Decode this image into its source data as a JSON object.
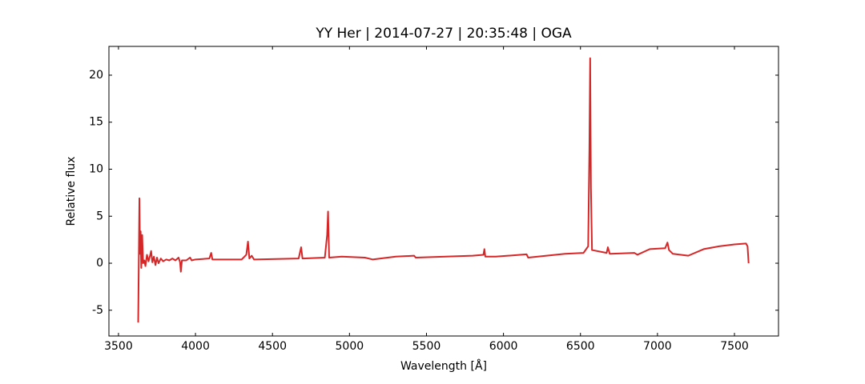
{
  "chart_data": {
    "type": "line",
    "title": "YY Her | 2014-07-27 | 20:35:48 | OGA",
    "xlabel": "Wavelength [Å]",
    "ylabel": "Relative flux",
    "color": "#d62728",
    "x": [
      3628,
      3636,
      3640,
      3644,
      3648,
      3654,
      3660,
      3668,
      3675,
      3685,
      3695,
      3705,
      3712,
      3720,
      3730,
      3740,
      3750,
      3760,
      3775,
      3790,
      3810,
      3830,
      3850,
      3870,
      3890,
      3900,
      3905,
      3912,
      3940,
      3965,
      3975,
      4000,
      4090,
      4102,
      4110,
      4300,
      4330,
      4341,
      4350,
      4365,
      4380,
      4670,
      4686,
      4695,
      4840,
      4855,
      4861,
      4868,
      4950,
      5100,
      5150,
      5300,
      5420,
      5430,
      5800,
      5870,
      5876,
      5882,
      5950,
      6150,
      6160,
      6400,
      6520,
      6550,
      6558,
      6563,
      6568,
      6575,
      6670,
      6678,
      6690,
      6850,
      6870,
      6950,
      7050,
      7065,
      7075,
      7100,
      7200,
      7300,
      7400,
      7500,
      7575,
      7585,
      7592
    ],
    "values": [
      -6.3,
      6.9,
      1.0,
      3.4,
      -0.5,
      3.0,
      0.0,
      0.3,
      -0.3,
      0.9,
      0.2,
      0.8,
      1.3,
      0.1,
      0.7,
      -0.2,
      0.6,
      0.0,
      0.5,
      0.2,
      0.4,
      0.3,
      0.5,
      0.3,
      0.6,
      0.1,
      -0.9,
      0.3,
      0.3,
      0.6,
      0.3,
      0.4,
      0.5,
      1.1,
      0.4,
      0.4,
      0.9,
      2.3,
      0.5,
      0.8,
      0.4,
      0.5,
      1.7,
      0.5,
      0.6,
      3.0,
      5.5,
      0.6,
      0.7,
      0.6,
      0.4,
      0.7,
      0.8,
      0.6,
      0.8,
      0.9,
      1.5,
      0.7,
      0.7,
      0.95,
      0.6,
      1.0,
      1.1,
      1.8,
      12,
      21.8,
      8,
      1.4,
      1.1,
      1.7,
      1.0,
      1.1,
      0.9,
      1.5,
      1.6,
      2.2,
      1.4,
      1.0,
      0.8,
      1.5,
      1.8,
      2.0,
      2.1,
      1.8,
      0.0
    ],
    "xlim": [
      3438,
      7786
    ],
    "ylim": [
      -7.74,
      23.06
    ],
    "xticks": [
      3500,
      4000,
      4500,
      5000,
      5500,
      6000,
      6500,
      7000,
      7500
    ],
    "yticks": [
      -5,
      0,
      5,
      10,
      15,
      20
    ]
  }
}
